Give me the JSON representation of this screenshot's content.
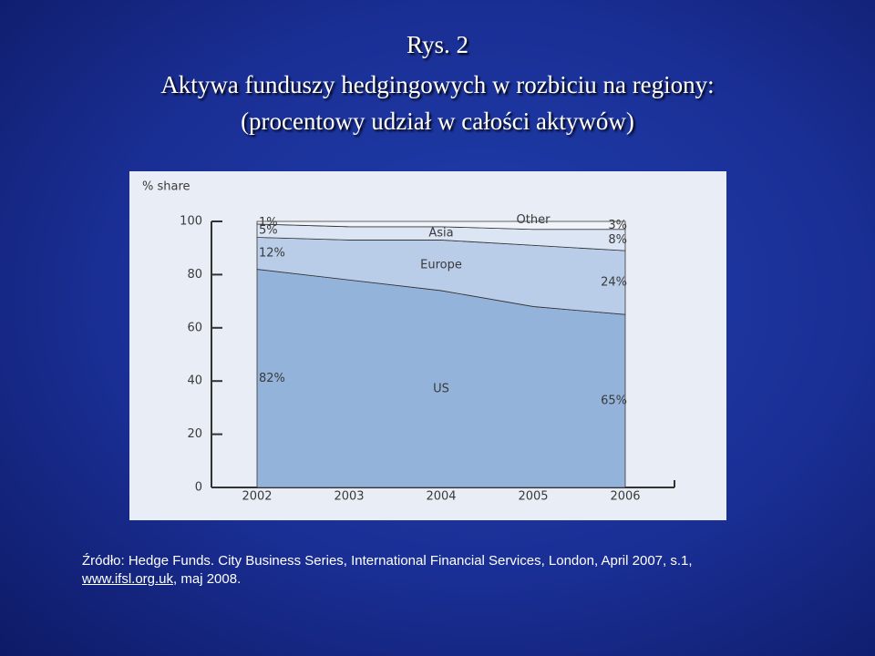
{
  "slide": {
    "title": [
      "Rys. 2",
      "Aktywa funduszy hedgingowych w rozbiciu na regiony:",
      "(procentowy udział w całości aktywów)"
    ],
    "source": {
      "text": "Źródło: Hedge Funds. City Business Series, International Financial Services, London, April 2007, s.1, ",
      "link": "www.ifsl.org.uk",
      "tail": ", maj 2008."
    }
  },
  "chart_data": {
    "type": "stacked_area",
    "y_label": "% share",
    "categories": [
      "2002",
      "2003",
      "2004",
      "2005",
      "2006"
    ],
    "series": [
      {
        "name": "US",
        "color": "#94b3db",
        "values": [
          82,
          78,
          74,
          68,
          65
        ],
        "value_labels": [
          "82%",
          null,
          null,
          null,
          "65%"
        ]
      },
      {
        "name": "Europe",
        "color": "#b9cde9",
        "values": [
          12,
          15,
          19,
          23,
          24
        ],
        "value_labels": [
          "12%",
          null,
          null,
          null,
          "24%"
        ]
      },
      {
        "name": "Asia",
        "color": "#dbe5f3",
        "values": [
          5,
          5,
          5,
          6,
          8
        ],
        "value_labels": [
          "5%",
          null,
          null,
          null,
          "8%"
        ]
      },
      {
        "name": "Other",
        "color": "#f0f3f9",
        "values": [
          1,
          2,
          2,
          3,
          3
        ],
        "value_labels": [
          "1%",
          null,
          null,
          null,
          "3%"
        ]
      }
    ],
    "ylim": [
      0,
      100
    ],
    "yticks": [
      0,
      20,
      40,
      60,
      80,
      100
    ]
  }
}
